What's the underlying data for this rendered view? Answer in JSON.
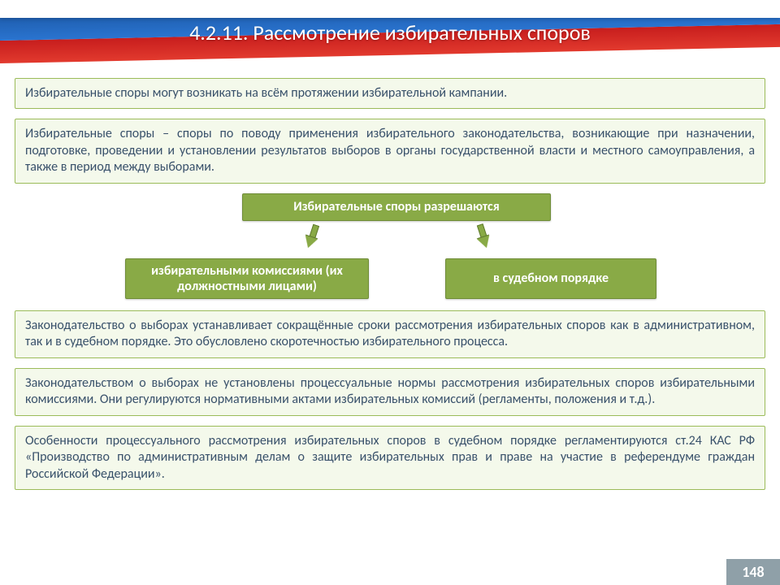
{
  "header": {
    "title": "4.2.11. Рассмотрение избирательных споров"
  },
  "colors": {
    "box_bg": "#f4f9eb",
    "box_border": "#9bbb59",
    "node_bg": "#89aa46",
    "node_border": "#6f8c38",
    "arrow_fill": "#89aa46",
    "arrow_border": "#5f7a2e",
    "badge_bg": "#8fa0a8",
    "text": "#39516b"
  },
  "boxes": {
    "intro": "Избирательные споры могут возникать на всём протяжении избирательной кампании.",
    "definition": "Избирательные споры – споры по поводу применения избирательного законодательства, возникающие при назначении, подготовке, проведении и установлении результатов выборов в органы государственной власти и местного самоуправления, а также в период между выборами.",
    "terms": "Законодательство о выборах устанавливает сокращённые сроки рассмотрения избирательных споров как в административном, так и в судебном порядке. Это обусловлено скоротечностью избирательного процесса.",
    "norms": "Законодательством о выборах не установлены процессуальные нормы рассмотрения избирательных споров избирательными комиссиями. Они регулируются нормативными актами избирательных комиссий (регламенты, положения и т.д.).",
    "kas": "Особенности процессуального рассмотрения избирательных споров в судебном порядке регламентируются ст.24 КАС РФ «Производство по административным делам о защите избирательных прав и праве на участие в референдуме граждан Российской Федерации»."
  },
  "diagram": {
    "root": "Избирательные споры разрешаются",
    "left": "избирательными комиссиями (их должностными лицами)",
    "right": "в судебном порядке"
  },
  "page_number": "148"
}
